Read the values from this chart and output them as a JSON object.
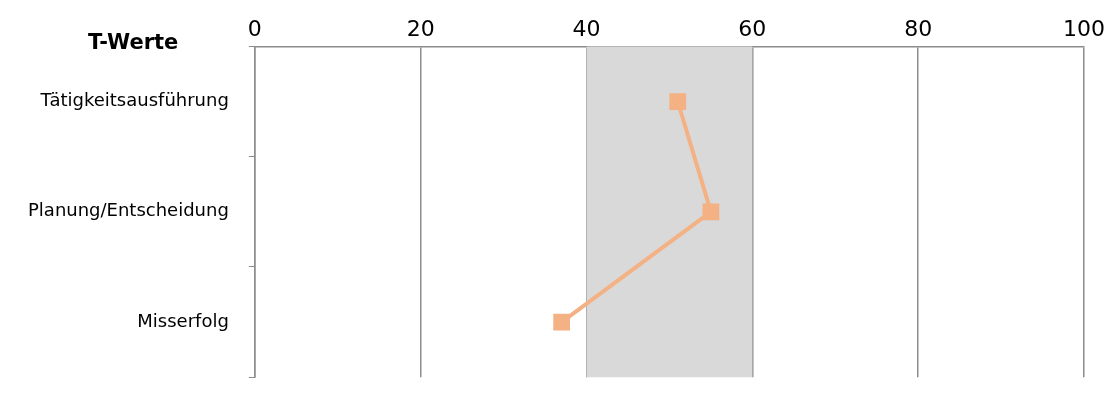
{
  "chart_data": {
    "type": "line",
    "orientation": "horizontal",
    "title": "T-Werte",
    "categories": [
      "Tätigkeitsausführung",
      "Planung/Entscheidung",
      "Misserfolg"
    ],
    "series": [
      {
        "color": "#f4b183",
        "values": [
          51,
          55,
          37
        ]
      }
    ],
    "xlim": [
      0,
      100
    ],
    "xticks": [
      0,
      20,
      40,
      60,
      80,
      100
    ],
    "bands": [
      {
        "axis": "x",
        "from": 40,
        "to": 60,
        "color": "#d9d9d9"
      }
    ],
    "grid": "x",
    "legend": false,
    "marker": "square",
    "line_style": "solid"
  }
}
